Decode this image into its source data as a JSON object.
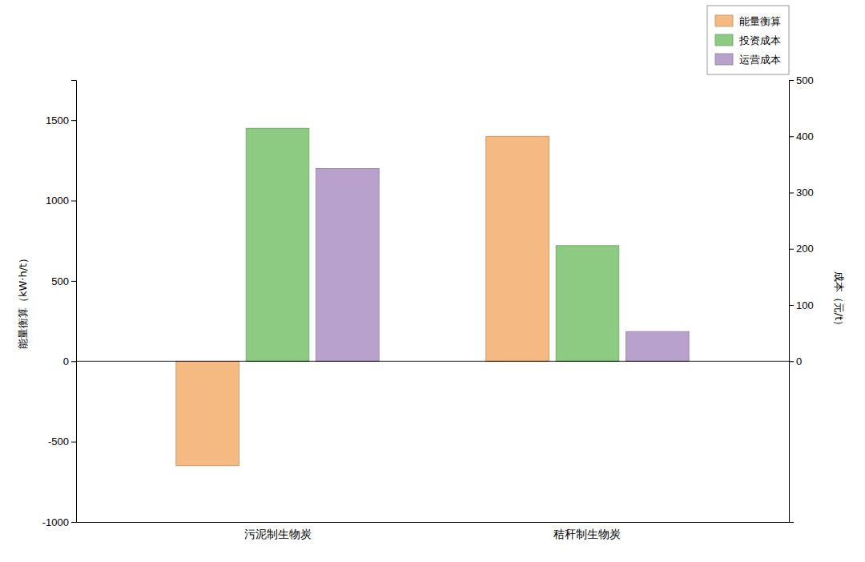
{
  "chart_data": {
    "type": "bar",
    "categories": [
      "污泥制生物炭",
      "秸秆制生物炭"
    ],
    "series": [
      {
        "name": "能量衡算",
        "color": "#F5BA82",
        "axis": "y",
        "values": [
          -650,
          1400
        ]
      },
      {
        "name": "投资成本",
        "color": "#8DCB82",
        "axis": "y2",
        "values": [
          414.2857142857143,
          205.71428571428572
        ]
      },
      {
        "name": "运营成本",
        "color": "#B8A2CC",
        "axis": "y2",
        "values": [
          342.85714285714283,
          52.857142857142854
        ]
      }
    ],
    "y_label": "能量衡算（kW·h/t）",
    "y2_label": "成本（元/t）",
    "ylim": [
      -1000,
      1750
    ],
    "yticks": [
      -1000,
      -500,
      0,
      500,
      1000,
      1500
    ],
    "y2lim": [
      -285.7142857142857,
      500
    ],
    "y2ticks": [
      0,
      100,
      200,
      300,
      400,
      500
    ],
    "grid": false,
    "legend": "upper right"
  }
}
